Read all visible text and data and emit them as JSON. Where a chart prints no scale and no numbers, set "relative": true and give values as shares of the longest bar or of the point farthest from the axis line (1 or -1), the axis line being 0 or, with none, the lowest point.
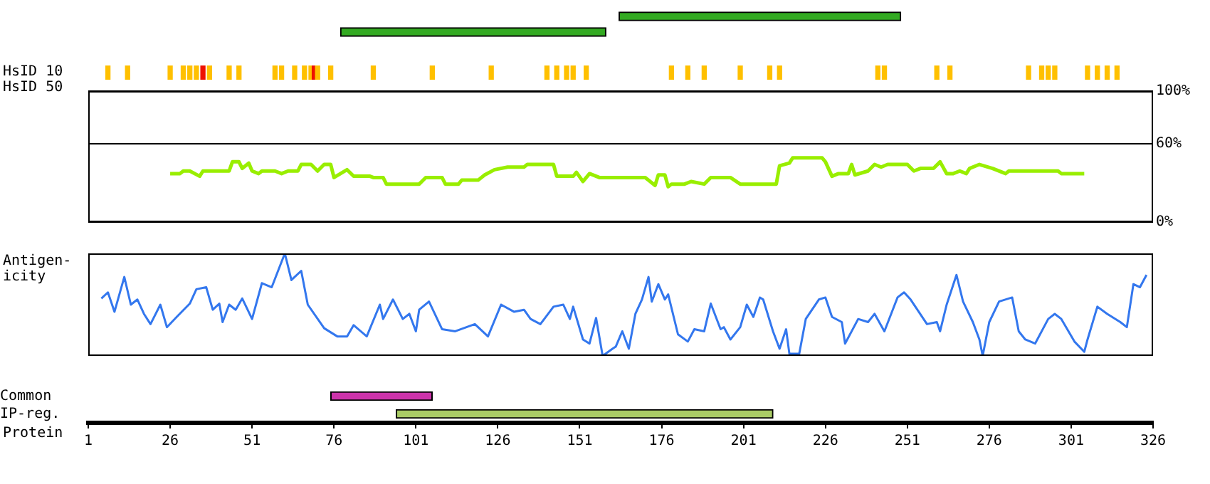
{
  "chart_data": [
    {
      "type": "bar",
      "orientation": "horizontal",
      "categories": [
        null,
        null
      ],
      "base": [
        163,
        78
      ],
      "values": [
        86,
        81
      ],
      "color": "#33aa22",
      "xlim": [
        1,
        326
      ],
      "tick_labels": false
    },
    {
      "type": "bar",
      "ylabel": "HsID 10",
      "relative": true,
      "x": [
        7,
        13,
        26,
        30,
        32,
        34,
        36,
        38,
        44,
        47,
        58,
        60,
        64,
        67,
        69,
        70,
        71,
        75,
        88,
        106,
        124,
        141,
        144,
        147,
        149,
        153,
        179,
        184,
        189,
        200,
        209,
        212,
        242,
        244,
        260,
        264,
        288,
        292,
        294,
        296,
        306,
        309,
        312,
        315
      ],
      "values": [
        1,
        1,
        1,
        1,
        1,
        1,
        1,
        1,
        1,
        1,
        1,
        1,
        1,
        1,
        1,
        1,
        1,
        1,
        1,
        1,
        1,
        1,
        1,
        1,
        1,
        1,
        1,
        1,
        1,
        1,
        1,
        1,
        1,
        1,
        1,
        1,
        1,
        1,
        1,
        1,
        1,
        1,
        1,
        1
      ],
      "colors": [
        "#ffc000",
        "#ffc000",
        "#ffc000",
        "#ffc000",
        "#ffc000",
        "#ffc000",
        "#ee1100",
        "#ffc000",
        "#ffc000",
        "#ffc000",
        "#ffc000",
        "#ffc000",
        "#ffc000",
        "#ffc000",
        "#ffc000",
        "#ee1100",
        "#ffc000",
        "#ffc000",
        "#ffc000",
        "#ffc000",
        "#ffc000",
        "#ffc000",
        "#ffc000",
        "#ffc000",
        "#ffc000",
        "#ffc000",
        "#ffc000",
        "#ffc000",
        "#ffc000",
        "#ffc000",
        "#ffc000",
        "#ffc000",
        "#ffc000",
        "#ffc000",
        "#ffc000",
        "#ffc000",
        "#ffc000",
        "#ffc000",
        "#ffc000",
        "#ffc000",
        "#ffc000",
        "#ffc000",
        "#ffc000",
        "#ffc000"
      ],
      "xlim": [
        1,
        326
      ],
      "tick_labels": false
    },
    {
      "type": "line",
      "ylabel": "HsID 50",
      "x": [
        26,
        29,
        30,
        32,
        35,
        36,
        44,
        45,
        47,
        48,
        50,
        51,
        53,
        54,
        58,
        60,
        62,
        65,
        66,
        69,
        71,
        73,
        75,
        76,
        78,
        80,
        82,
        87,
        88,
        91,
        92,
        102,
        104,
        109,
        110,
        114,
        115,
        120,
        122,
        125,
        129,
        134,
        135,
        143,
        144,
        149,
        150,
        152,
        154,
        157,
        171,
        174,
        175,
        177,
        178,
        179,
        183,
        185,
        189,
        191,
        197,
        200,
        211,
        212,
        215,
        216,
        225,
        226,
        228,
        230,
        233,
        234,
        235,
        239,
        241,
        243,
        245,
        251,
        253,
        255,
        259,
        261,
        263,
        265,
        267,
        269,
        270,
        273,
        277,
        281,
        282,
        297,
        298,
        305
      ],
      "values": [
        37,
        37,
        39,
        39,
        35,
        39,
        39,
        46,
        46,
        41,
        45,
        39,
        37,
        39,
        39,
        37,
        39,
        39,
        44,
        44,
        39,
        44,
        44,
        34,
        37,
        40,
        35,
        35,
        34,
        34,
        29,
        29,
        34,
        34,
        29,
        29,
        32,
        32,
        36,
        40,
        42,
        42,
        44,
        44,
        35,
        35,
        38,
        31,
        37,
        34,
        34,
        28,
        36,
        36,
        27,
        29,
        29,
        31,
        29,
        34,
        34,
        29,
        29,
        43,
        45,
        49,
        49,
        46,
        35,
        37,
        37,
        44,
        36,
        39,
        44,
        42,
        44,
        44,
        39,
        41,
        41,
        46,
        37,
        37,
        39,
        37,
        41,
        44,
        41,
        37,
        39,
        39,
        37,
        37
      ],
      "color": "#99ee00",
      "xlim": [
        1,
        326
      ],
      "ylim": [
        0,
        100
      ],
      "yticks": [
        {
          "value": 0,
          "label": "0%"
        },
        {
          "value": 60,
          "label": "60%"
        },
        {
          "value": 100,
          "label": "100%"
        }
      ],
      "grid": "y",
      "tick_labels": "y"
    },
    {
      "type": "line",
      "ylabel": "Antigen-icity",
      "relative": true,
      "x": [
        5,
        7,
        9,
        12,
        14,
        16,
        18,
        20,
        23,
        25,
        28,
        32,
        34,
        37,
        39,
        41,
        42,
        44,
        46,
        48,
        51,
        54,
        57,
        61,
        63,
        66,
        68,
        73,
        77,
        80,
        82,
        86,
        90,
        91,
        94,
        97,
        99,
        101,
        102,
        105,
        109,
        113,
        119,
        123,
        127,
        131,
        134,
        136,
        139,
        143,
        146,
        148,
        149,
        152,
        154,
        156,
        158,
        161,
        162,
        164,
        166,
        168,
        170,
        172,
        173,
        175,
        177,
        178,
        181,
        184,
        186,
        189,
        191,
        194,
        195,
        197,
        200,
        202,
        204,
        206,
        207,
        210,
        212,
        214,
        215,
        218,
        220,
        224,
        226,
        228,
        231,
        232,
        236,
        239,
        241,
        244,
        248,
        250,
        252,
        257,
        260,
        261,
        263,
        266,
        268,
        271,
        273,
        274,
        276,
        279,
        283,
        285,
        287,
        290,
        294,
        296,
        298,
        302,
        305,
        306,
        309,
        312,
        316,
        318,
        320,
        322,
        324
      ],
      "values": [
        0.56,
        0.62,
        0.43,
        0.77,
        0.5,
        0.55,
        0.41,
        0.31,
        0.5,
        0.28,
        0.38,
        0.51,
        0.65,
        0.67,
        0.45,
        0.51,
        0.33,
        0.5,
        0.45,
        0.56,
        0.36,
        0.71,
        0.67,
        1,
        0.74,
        0.83,
        0.5,
        0.27,
        0.19,
        0.19,
        0.3,
        0.19,
        0.5,
        0.36,
        0.55,
        0.36,
        0.41,
        0.24,
        0.45,
        0.53,
        0.26,
        0.24,
        0.31,
        0.19,
        0.5,
        0.43,
        0.45,
        0.36,
        0.31,
        0.48,
        0.5,
        0.36,
        0.48,
        0.16,
        0.12,
        0.37,
        0,
        0.07,
        0.09,
        0.24,
        0.07,
        0.41,
        0.55,
        0.77,
        0.53,
        0.7,
        0.55,
        0.6,
        0.21,
        0.14,
        0.26,
        0.24,
        0.51,
        0.26,
        0.28,
        0.16,
        0.28,
        0.5,
        0.38,
        0.57,
        0.55,
        0.24,
        0.07,
        0.26,
        0.02,
        0.02,
        0.36,
        0.55,
        0.57,
        0.38,
        0.33,
        0.12,
        0.36,
        0.33,
        0.41,
        0.24,
        0.57,
        0.62,
        0.55,
        0.31,
        0.33,
        0.24,
        0.5,
        0.79,
        0.53,
        0.33,
        0.16,
        0,
        0.33,
        0.53,
        0.57,
        0.24,
        0.16,
        0.12,
        0.36,
        0.41,
        0.36,
        0.14,
        0.04,
        0.16,
        0.48,
        0.41,
        0.33,
        0.28,
        0.7,
        0.67,
        0.79
      ],
      "color": "#3377ee",
      "xlim": [
        1,
        326
      ],
      "tick_labels": false
    },
    {
      "type": "bar",
      "orientation": "horizontal",
      "categories": [
        "Common",
        "IP-reg."
      ],
      "base": [
        75,
        95
      ],
      "values": [
        31,
        115
      ],
      "colors": [
        "#cc33aa",
        "#aacc66"
      ],
      "xlabel": "Protein",
      "xlim": [
        1,
        326
      ],
      "xticks": [
        1,
        26,
        51,
        76,
        101,
        126,
        151,
        176,
        201,
        226,
        251,
        276,
        301,
        326
      ]
    }
  ]
}
